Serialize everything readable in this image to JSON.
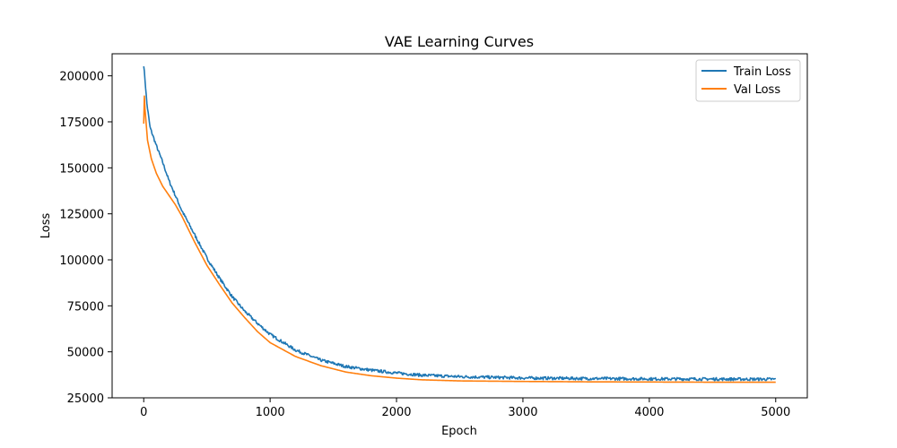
{
  "chart_data": {
    "type": "line",
    "title": "VAE Learning Curves",
    "xlabel": "Epoch",
    "ylabel": "Loss",
    "xlim": [
      -250,
      5250
    ],
    "ylim": [
      25000,
      212000
    ],
    "xticks": [
      0,
      1000,
      2000,
      3000,
      4000,
      5000
    ],
    "xtick_labels": [
      "0",
      "1000",
      "2000",
      "3000",
      "4000",
      "5000"
    ],
    "yticks": [
      25000,
      50000,
      75000,
      100000,
      125000,
      150000,
      175000,
      200000
    ],
    "ytick_labels": [
      "25000",
      "50000",
      "75000",
      "100000",
      "125000",
      "150000",
      "175000",
      "200000"
    ],
    "grid": false,
    "legend_position": "top-right",
    "series": [
      {
        "name": "Train Loss",
        "color": "#1f77b4",
        "noise": 800,
        "x": [
          0,
          10,
          25,
          50,
          100,
          150,
          200,
          300,
          400,
          500,
          600,
          700,
          800,
          900,
          1000,
          1200,
          1400,
          1600,
          1800,
          2000,
          2200,
          2500,
          3000,
          3500,
          4000,
          4500,
          5000
        ],
        "y": [
          206000,
          198000,
          185000,
          172000,
          162000,
          153000,
          143000,
          127000,
          114000,
          101000,
          90000,
          80000,
          72000,
          65500,
          59500,
          51000,
          45500,
          42000,
          40000,
          38500,
          37300,
          36500,
          35800,
          35500,
          35300,
          35200,
          35100
        ]
      },
      {
        "name": "Val Loss",
        "color": "#ff7f0e",
        "noise": 0,
        "x": [
          0,
          5,
          10,
          30,
          60,
          100,
          150,
          200,
          250,
          300,
          400,
          500,
          600,
          700,
          800,
          900,
          1000,
          1200,
          1400,
          1600,
          1800,
          2000,
          2200,
          2500,
          3000,
          3500,
          4000,
          4500,
          5000
        ],
        "y": [
          174000,
          189000,
          182000,
          165000,
          155000,
          147000,
          140000,
          135000,
          130000,
          124000,
          110000,
          97000,
          86500,
          76500,
          68500,
          61000,
          55000,
          47500,
          42500,
          39000,
          37000,
          35700,
          34800,
          34200,
          33900,
          33700,
          33600,
          33500,
          33500
        ]
      }
    ]
  }
}
